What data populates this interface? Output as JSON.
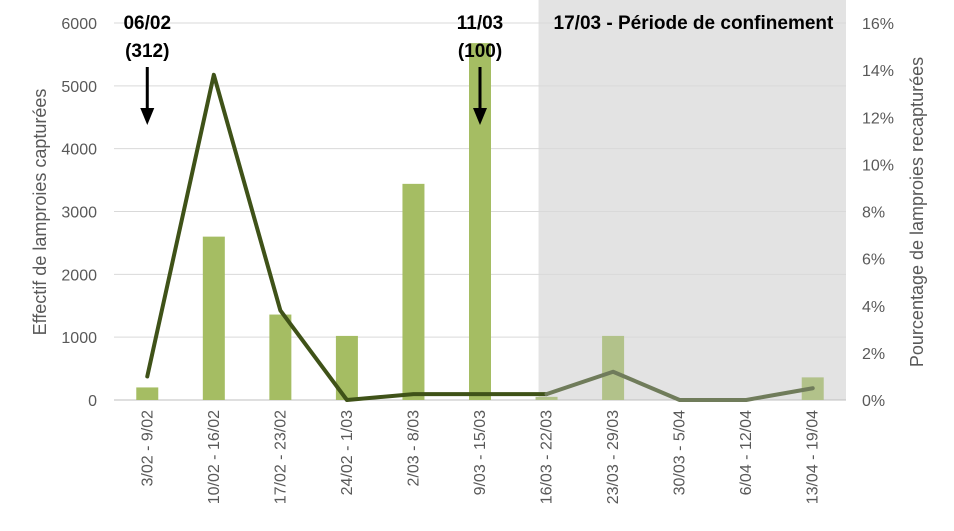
{
  "chart_data": {
    "type": "bar",
    "categories": [
      "3/02 - 9/02",
      "10/02 - 16/02",
      "17/02 - 23/02",
      "24/02 - 1/03",
      "2/03 - 8/03",
      "9/03 - 15/03",
      "16/03 - 22/03",
      "23/03 - 29/03",
      "30/03 - 5/04",
      "6/04 - 12/04",
      "13/04 - 19/04"
    ],
    "series": [
      {
        "type": "bar",
        "axis": "left",
        "values": [
          200,
          2600,
          1360,
          1020,
          3440,
          5680,
          50,
          1020,
          0,
          0,
          360
        ]
      },
      {
        "type": "line",
        "axis": "right",
        "values": [
          1.0,
          13.8,
          3.8,
          0.0,
          0.25,
          0.25,
          0.25,
          1.2,
          0.0,
          0.0,
          0.5
        ]
      }
    ],
    "ylabel": "Effectif de lamproies capturées",
    "y2label": "Pourcentage de lamproies recapturées",
    "ylim": [
      0,
      6000
    ],
    "y2lim": [
      0,
      16
    ],
    "yticks": [
      "0",
      "1000",
      "2000",
      "3000",
      "4000",
      "5000",
      "6000"
    ],
    "y2ticks": [
      "0%",
      "2%",
      "4%",
      "6%",
      "8%",
      "10%",
      "12%",
      "14%",
      "16%"
    ],
    "shaded_region": {
      "from_category": "16/03 - 22/03",
      "label": "17/03 - Période de confinement"
    },
    "annotations": [
      {
        "category": "3/02 - 9/02",
        "line1": "06/02",
        "line2": "(312)"
      },
      {
        "category": "9/03 - 15/03",
        "line1": "11/03",
        "line2": "(100)"
      }
    ],
    "colors": {
      "bar": "#a5bd63",
      "bar_confinement": "#b2c28a",
      "line": "#3f5218",
      "line_confinement": "#707c5b",
      "shade": "#e3e3e3",
      "grid": "#d9d9d9",
      "text": "#595959"
    },
    "grid": true,
    "legend": "none"
  }
}
